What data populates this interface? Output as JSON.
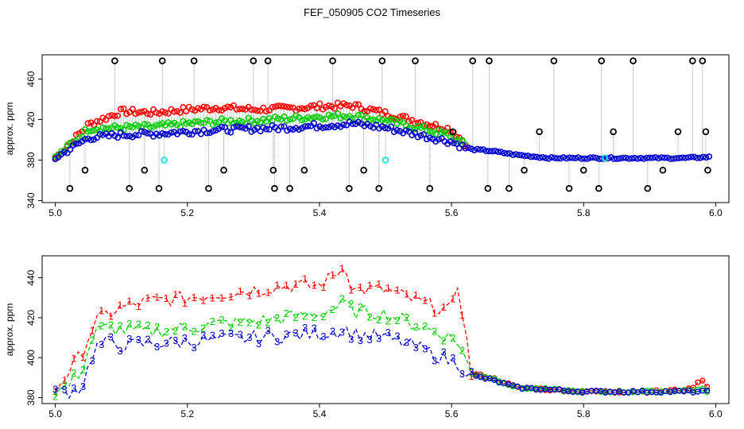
{
  "title": "FEF_050905  CO2 Timeseries",
  "colors": {
    "s1": "#ff0000",
    "s2": "#00cc00",
    "s3": "#0000cc",
    "black": "#000000",
    "cyan": "#00e5e5",
    "needle": "#999999"
  },
  "chart_data": [
    {
      "type": "scatter",
      "title": "",
      "xlabel": "",
      "ylabel": "approx. ppm",
      "xlim": [
        4.98,
        6.02
      ],
      "ylim": [
        338,
        484
      ],
      "xticks": [
        "5.0",
        "5.2",
        "5.4",
        "5.6",
        "5.8",
        "6.0"
      ],
      "yticks": [
        "340",
        "380",
        "420",
        "460"
      ],
      "series": [
        {
          "name": "red",
          "color": "#ff0000",
          "x": [
            5.0,
            5.05,
            5.1,
            5.15,
            5.2,
            5.25,
            5.3,
            5.35,
            5.4,
            5.45,
            5.5,
            5.55,
            5.6,
            5.625
          ],
          "y": [
            382,
            415,
            428,
            427,
            430,
            432,
            430,
            431,
            433,
            434,
            426,
            418,
            410,
            394
          ]
        },
        {
          "name": "green",
          "color": "#00cc00",
          "x": [
            5.0,
            5.05,
            5.1,
            5.15,
            5.2,
            5.25,
            5.3,
            5.35,
            5.4,
            5.45,
            5.5,
            5.55,
            5.6,
            5.625
          ],
          "y": [
            382,
            411,
            412,
            413,
            416,
            418,
            419,
            421,
            423,
            424,
            419,
            412,
            404,
            393
          ]
        },
        {
          "name": "blue",
          "color": "#0000cc",
          "x": [
            5.0,
            5.05,
            5.1,
            5.15,
            5.2,
            5.25,
            5.3,
            5.35,
            5.4,
            5.45,
            5.5,
            5.55,
            5.6,
            5.625,
            5.66,
            5.7,
            5.75,
            5.8,
            5.85,
            5.9,
            5.95,
            5.99
          ],
          "y": [
            382,
            402,
            405,
            406,
            408,
            410,
            411,
            412,
            414,
            416,
            412,
            405,
            398,
            391,
            389,
            385,
            382,
            382,
            382,
            382,
            382,
            383
          ]
        },
        {
          "name": "black-outliers",
          "color": "#000000",
          "x": [
            5.022,
            5.045,
            5.09,
            5.112,
            5.135,
            5.157,
            5.162,
            5.21,
            5.232,
            5.255,
            5.3,
            5.322,
            5.33,
            5.332,
            5.355,
            5.377,
            5.42,
            5.445,
            5.467,
            5.49,
            5.495,
            5.545,
            5.567,
            5.602,
            5.632,
            5.655,
            5.657,
            5.687,
            5.71,
            5.733,
            5.755,
            5.778,
            5.8,
            5.823,
            5.827,
            5.845,
            5.875,
            5.897,
            5.92,
            5.943,
            5.965,
            5.98,
            5.985,
            5.988
          ],
          "y": [
            352,
            370,
            478,
            352,
            370,
            352,
            478,
            478,
            352,
            370,
            478,
            478,
            370,
            352,
            352,
            370,
            478,
            352,
            370,
            352,
            478,
            478,
            352,
            408,
            478,
            352,
            478,
            352,
            370,
            408,
            478,
            352,
            370,
            352,
            478,
            408,
            478,
            352,
            370,
            408,
            478,
            478,
            408,
            370
          ]
        },
        {
          "name": "cyan-outliers",
          "color": "#00e5e5",
          "x": [
            5.165,
            5.5,
            5.832
          ],
          "y": [
            380,
            380,
            382
          ]
        }
      ]
    },
    {
      "type": "line",
      "title": "",
      "xlabel": "",
      "ylabel": "approx. ppm",
      "xlim": [
        4.98,
        6.02
      ],
      "ylim": [
        377,
        451
      ],
      "xticks": [
        "5.0",
        "5.2",
        "5.4",
        "5.6",
        "5.8",
        "6.0"
      ],
      "yticks": [
        "380",
        "400",
        "420",
        "440"
      ],
      "series": [
        {
          "name": "1",
          "color": "#ff0000",
          "symbol": "1",
          "x": [
            5.0,
            5.02,
            5.04,
            5.06,
            5.08,
            5.1,
            5.14,
            5.2,
            5.25,
            5.3,
            5.35,
            5.4,
            5.44,
            5.45,
            5.5,
            5.55,
            5.6,
            5.61,
            5.63,
            5.66,
            5.7,
            5.8,
            5.9,
            5.96,
            5.98,
            5.99
          ],
          "y": [
            384,
            393,
            402,
            418,
            422,
            425,
            428,
            430,
            432,
            434,
            436,
            436,
            446,
            434,
            434,
            428,
            423,
            438,
            392,
            390,
            385,
            383,
            383,
            384,
            389,
            384
          ]
        },
        {
          "name": "2",
          "color": "#00cc00",
          "symbol": "2",
          "x": [
            5.0,
            5.02,
            5.04,
            5.06,
            5.08,
            5.1,
            5.14,
            5.2,
            5.25,
            5.3,
            5.35,
            5.4,
            5.44,
            5.45,
            5.5,
            5.55,
            5.6,
            5.61,
            5.63,
            5.66,
            5.7,
            5.8,
            5.9,
            5.98,
            5.99
          ],
          "y": [
            383,
            386,
            394,
            413,
            415,
            414,
            413,
            415,
            417,
            418,
            420,
            422,
            427,
            423,
            422,
            416,
            410,
            408,
            392,
            390,
            385,
            383,
            383,
            384,
            383
          ]
        },
        {
          "name": "3",
          "color": "#0000cc",
          "symbol": "3",
          "x": [
            5.0,
            5.02,
            5.04,
            5.06,
            5.08,
            5.1,
            5.14,
            5.2,
            5.25,
            5.3,
            5.35,
            5.4,
            5.44,
            5.45,
            5.5,
            5.55,
            5.6,
            5.61,
            5.63,
            5.66,
            5.7,
            5.8,
            5.9,
            5.98,
            5.99
          ],
          "y": [
            383,
            383,
            385,
            405,
            408,
            406,
            407,
            408,
            409,
            410,
            411,
            412,
            414,
            412,
            410,
            405,
            398,
            397,
            391,
            389,
            385,
            383,
            383,
            383,
            383
          ]
        }
      ]
    }
  ]
}
